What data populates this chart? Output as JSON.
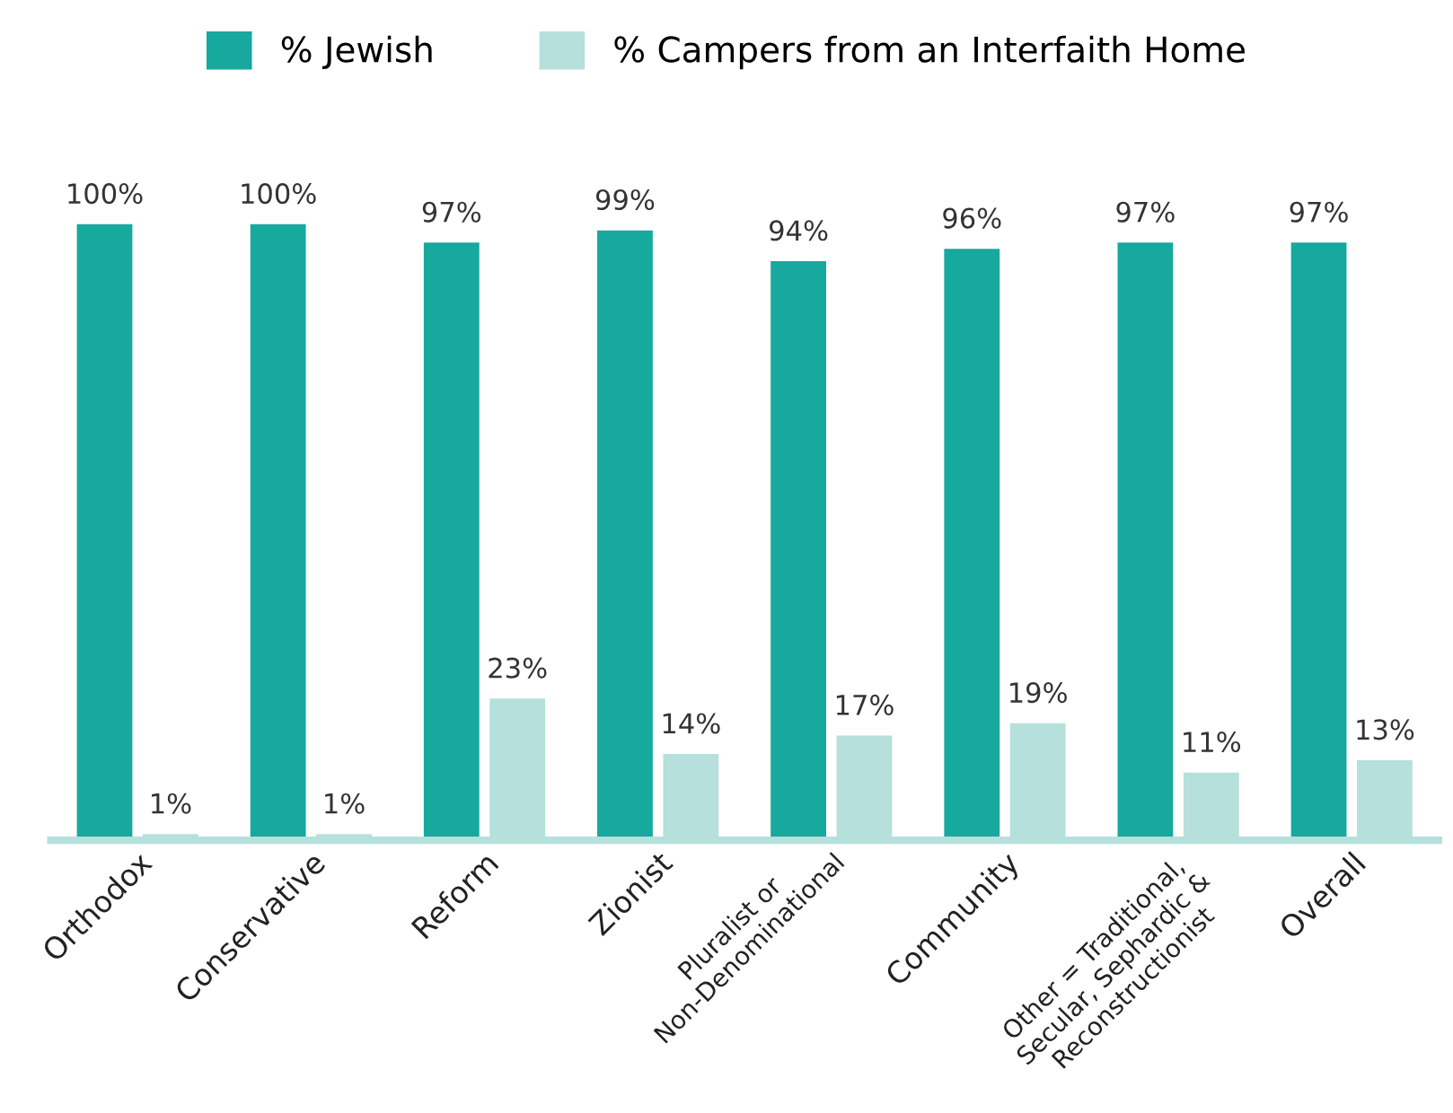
{
  "chart_data": {
    "type": "bar",
    "categories": [
      "Orthodox",
      "Conservative",
      "Reform",
      "Zionist",
      "Pluralist or\nNon-Denominational",
      "Community",
      "Other = Traditional,\nSecular, Sephardic &\nReconstructionist",
      "Overall"
    ],
    "series": [
      {
        "name": "% Jewish",
        "color": "#17a89e",
        "values": [
          100,
          100,
          97,
          99,
          94,
          96,
          97,
          97
        ],
        "value_labels": [
          "100%",
          "100%",
          "97%",
          "99%",
          "94%",
          "96%",
          "97%",
          "97%"
        ]
      },
      {
        "name": "% Campers from an Interfaith Home",
        "color": "#b5e0dc",
        "values": [
          1,
          1,
          23,
          14,
          17,
          19,
          11,
          13
        ],
        "value_labels": [
          "1%",
          "1%",
          "23%",
          "14%",
          "17%",
          "19%",
          "11%",
          "13%"
        ]
      }
    ],
    "legend": "top",
    "grid": false,
    "tick_labels": "x"
  }
}
